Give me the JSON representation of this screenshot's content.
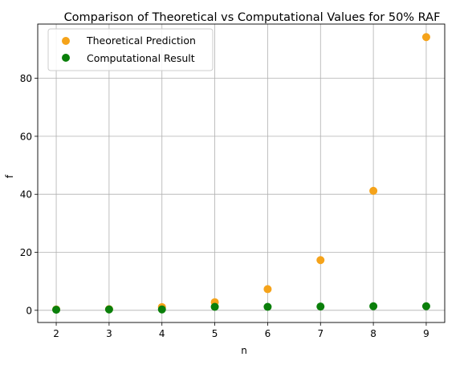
{
  "chart_data": {
    "type": "scatter",
    "title": "Comparison of Theoretical vs Computational Values for 50% RAF",
    "xlabel": "n",
    "ylabel": "f",
    "x": [
      2,
      3,
      4,
      5,
      6,
      7,
      8,
      9
    ],
    "xticks": [
      "2",
      "3",
      "4",
      "5",
      "6",
      "7",
      "8",
      "9"
    ],
    "yticks": [
      "0",
      "20",
      "40",
      "60",
      "80"
    ],
    "xlim": [
      1.65,
      9.35
    ],
    "ylim": [
      -4.2,
      98.7
    ],
    "grid": true,
    "legend_position": "upper-left",
    "series": [
      {
        "name": "Theoretical Prediction",
        "color": "#f5a31a",
        "values": [
          0.3,
          0.4,
          1.1,
          2.8,
          7.3,
          17.3,
          41.2,
          94.2
        ]
      },
      {
        "name": "Computational Result",
        "color": "#0a7f0a",
        "values": [
          0.2,
          0.3,
          0.3,
          1.2,
          1.2,
          1.3,
          1.4,
          1.4
        ]
      }
    ]
  }
}
